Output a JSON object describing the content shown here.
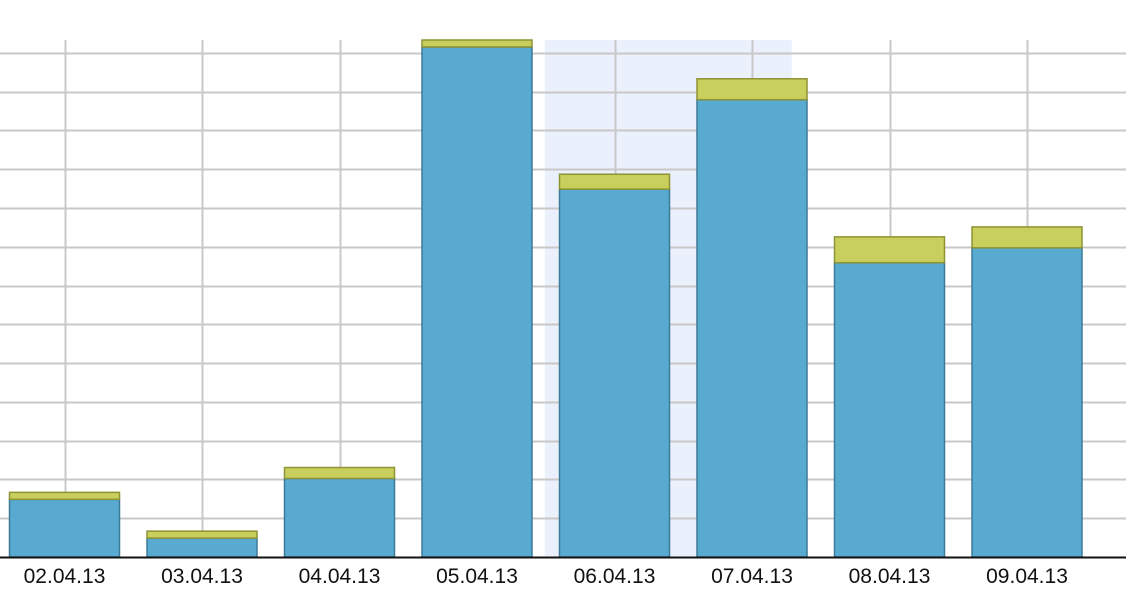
{
  "chart_data": {
    "type": "bar",
    "stacked": true,
    "categories": [
      "02.04.13",
      "03.04.13",
      "04.04.13",
      "05.04.13",
      "06.04.13",
      "07.04.13",
      "08.04.13",
      "09.04.13"
    ],
    "series": [
      {
        "color": "#59aad0",
        "values": [
          58,
          19,
          79,
          513,
          370,
          460,
          296,
          311
        ]
      },
      {
        "color": "#c9cf5c",
        "values": [
          7,
          7,
          11,
          7,
          15,
          21,
          26,
          21
        ]
      }
    ],
    "highlight_category": "06.04.13",
    "highlight_color": "#ebf1fc",
    "ylim": [
      0,
      520
    ],
    "y_grid_step": 39,
    "grid": true,
    "xlabel": "",
    "ylabel": ""
  }
}
